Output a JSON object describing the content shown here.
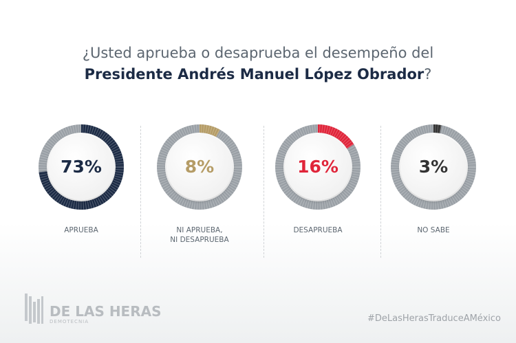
{
  "title": {
    "line1": "¿Usted aprueba o desaprueba el desempeño del",
    "line2_bold": "Presidente Andrés Manuel López Obrador",
    "line2_end": "?"
  },
  "chart_data": {
    "type": "pie",
    "variant": "donut",
    "items": [
      {
        "label": "APRUEBA",
        "value": 73,
        "display": "73%",
        "color": "#1c2b45"
      },
      {
        "label": "NI APRUEBA, NI DESAPRUEBA",
        "value": 8,
        "display": "8%",
        "color": "#b59c66"
      },
      {
        "label": "DESAPRUEBA",
        "value": 16,
        "display": "16%",
        "color": "#e0253a"
      },
      {
        "label": "NO SABE",
        "value": 3,
        "display": "3%",
        "color": "#333333"
      }
    ],
    "track_color": "#9aa0a6"
  },
  "labels": {
    "l2a": "NI APRUEBA,",
    "l2b": "NI DESAPRUEBA"
  },
  "footer": {
    "brand": "DE LAS HERAS",
    "sub": "DEMOTECNIA",
    "hashtag": "#DeLasHerasTraduceAMéxico"
  }
}
